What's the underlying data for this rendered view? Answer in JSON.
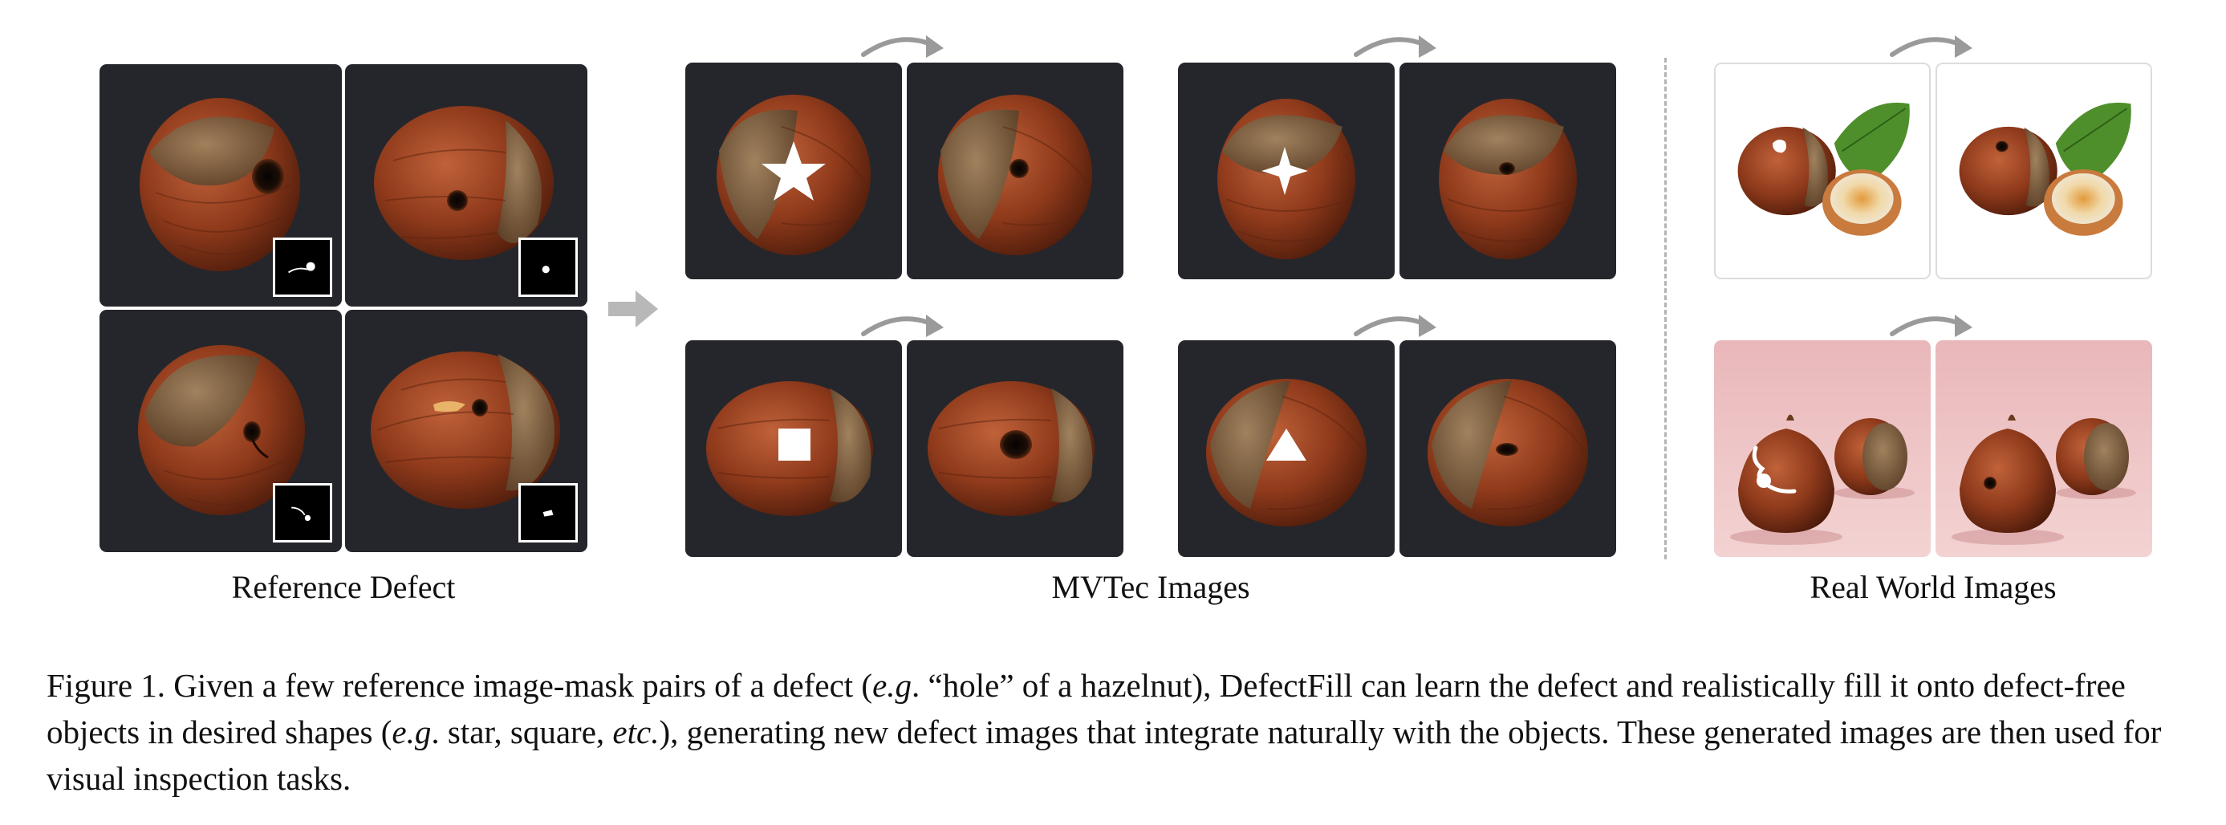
{
  "labels": {
    "reference": "Reference Defect",
    "mvtec": "MVTec Images",
    "real_world": "Real World Images"
  },
  "caption": {
    "lead": "Figure 1. Given a few reference image-mask pairs of a defect (",
    "eg1": "e.g",
    "seg1": ". “hole” of a hazelnut), DefectFill can learn the defect and realistically fill it onto defect-free objects in desired shapes (",
    "eg2": "e.g",
    "seg2": ". star, square, ",
    "etc": "etc.",
    "seg3": "), generating new defect images that integrate naturally with the objects. These generated images are then used for visual inspection tasks."
  },
  "icons": {
    "curved_arrow": "curved-arrow-icon",
    "forward_arrow": "right-arrow-icon",
    "shapes": [
      "star",
      "four-point-star",
      "square",
      "triangle"
    ]
  },
  "colors": {
    "tile_dark": "#25262b",
    "nut_shell": "#8b3a1c",
    "nut_cap": "#7a5a3c",
    "arrow_gray": "#9a9a9a",
    "pink_bg": "#efc7c8"
  }
}
